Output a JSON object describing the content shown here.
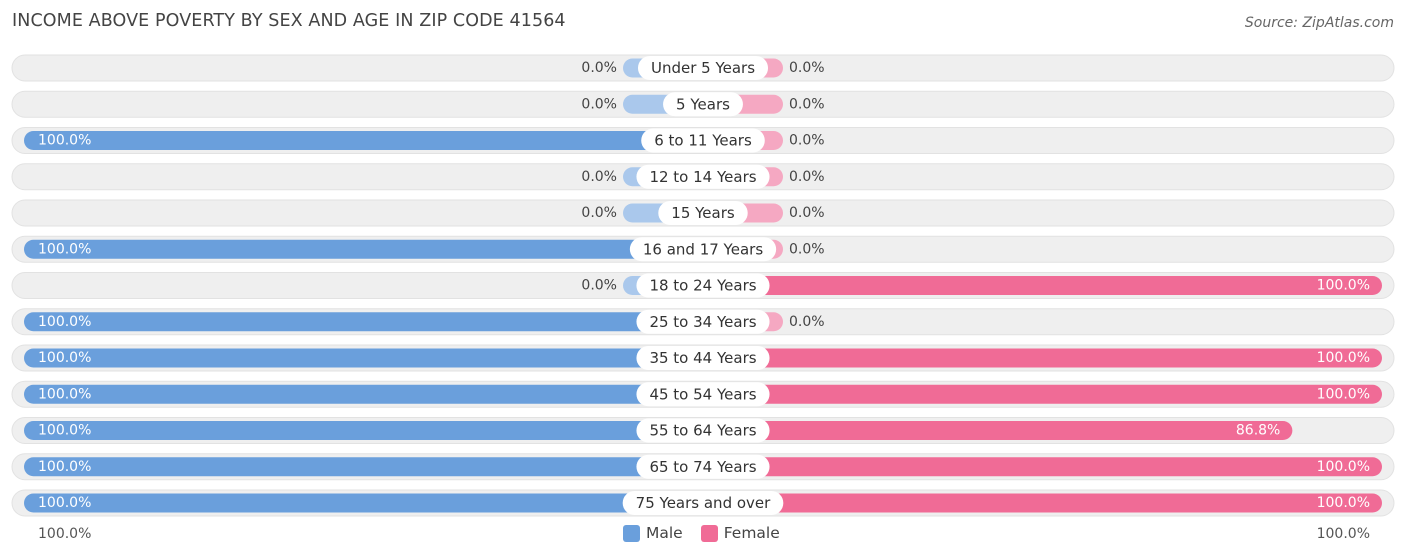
{
  "title": "INCOME ABOVE POVERTY BY SEX AND AGE IN ZIP CODE 41564",
  "source": "Source: ZipAtlas.com",
  "axis": {
    "left_label": "100.0%",
    "right_label": "100.0%"
  },
  "colors": {
    "male": "#6a9fdc",
    "male_light": "#aac8ec",
    "female": "#f06b96",
    "female_light": "#f5a8c2",
    "track": "#efefef"
  },
  "chart_data": {
    "type": "bar",
    "orientation": "horizontal-diverging",
    "categories": [
      "Under 5 Years",
      "5 Years",
      "6 to 11 Years",
      "12 to 14 Years",
      "15 Years",
      "16 and 17 Years",
      "18 to 24 Years",
      "25 to 34 Years",
      "35 to 44 Years",
      "45 to 54 Years",
      "55 to 64 Years",
      "65 to 74 Years",
      "75 Years and over"
    ],
    "series": [
      {
        "name": "Male",
        "values": [
          0.0,
          0.0,
          100.0,
          0.0,
          0.0,
          100.0,
          0.0,
          100.0,
          100.0,
          100.0,
          100.0,
          100.0,
          100.0
        ],
        "labels": [
          "0.0%",
          "0.0%",
          "100.0%",
          "0.0%",
          "0.0%",
          "100.0%",
          "0.0%",
          "100.0%",
          "100.0%",
          "100.0%",
          "100.0%",
          "100.0%",
          "100.0%"
        ]
      },
      {
        "name": "Female",
        "values": [
          0.0,
          0.0,
          0.0,
          0.0,
          0.0,
          0.0,
          100.0,
          0.0,
          100.0,
          100.0,
          86.8,
          100.0,
          100.0
        ],
        "labels": [
          "0.0%",
          "0.0%",
          "0.0%",
          "0.0%",
          "0.0%",
          "0.0%",
          "100.0%",
          "0.0%",
          "100.0%",
          "100.0%",
          "86.8%",
          "100.0%",
          "100.0%"
        ]
      }
    ],
    "xlim": [
      0,
      100
    ],
    "legend_position": "bottom-center"
  }
}
